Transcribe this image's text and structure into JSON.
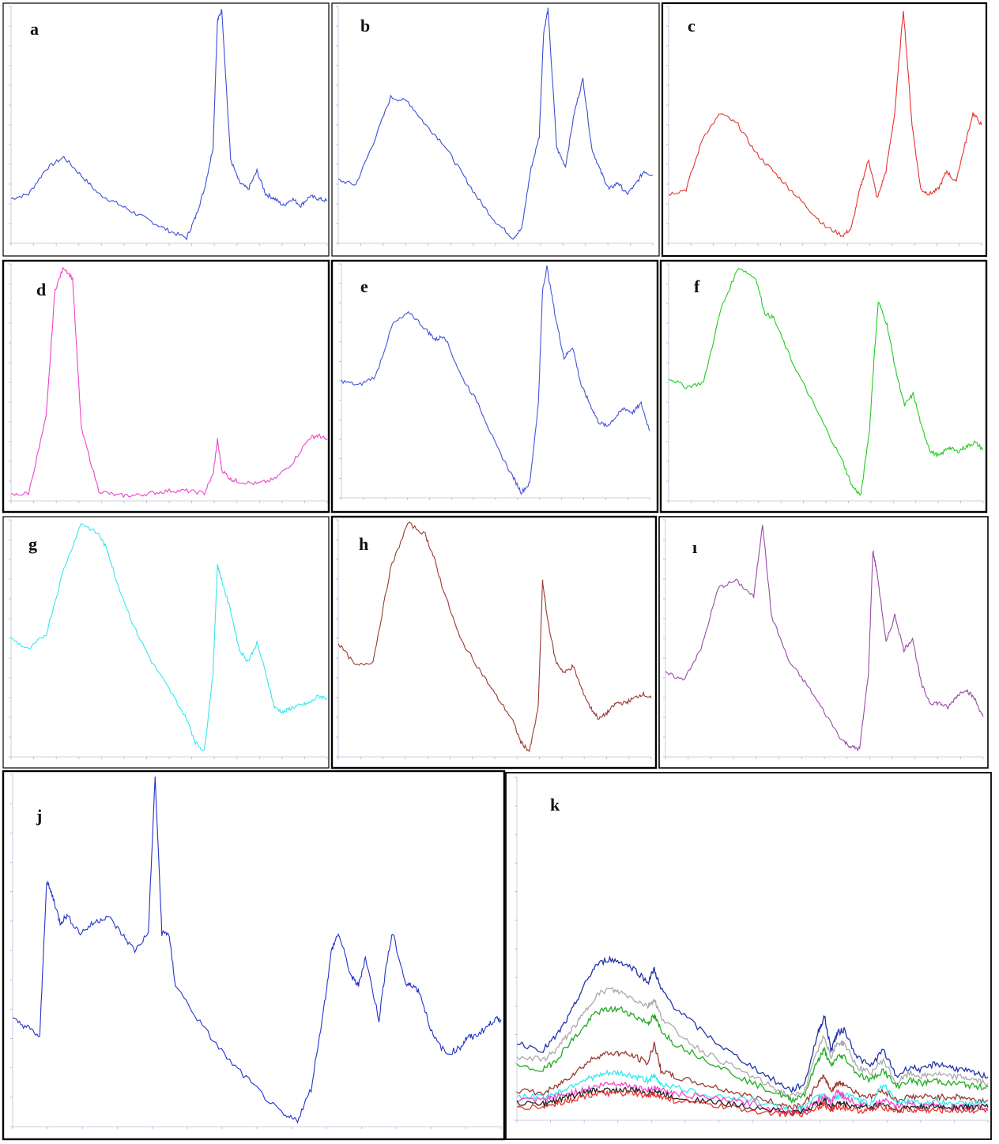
{
  "figure": {
    "panels": [
      {
        "id": "a",
        "label": "a",
        "color": "#3b4fd6"
      },
      {
        "id": "b",
        "label": "b",
        "color": "#3b4fd6"
      },
      {
        "id": "c",
        "label": "c",
        "color": "#e8322e"
      },
      {
        "id": "d",
        "label": "d",
        "color": "#ee44cc"
      },
      {
        "id": "e",
        "label": "e",
        "color": "#4455dd"
      },
      {
        "id": "f",
        "label": "f",
        "color": "#22cc22"
      },
      {
        "id": "g",
        "label": "g",
        "color": "#33e8f0"
      },
      {
        "id": "h",
        "label": "h",
        "color": "#9a3a30"
      },
      {
        "id": "i",
        "label": "ı",
        "color": "#9a4aa8"
      },
      {
        "id": "j",
        "label": "j",
        "color": "#2233cc"
      },
      {
        "id": "k",
        "label": "k",
        "color": "#2233aa"
      }
    ]
  },
  "chart_data": [
    {
      "panel": "a",
      "type": "line",
      "xlim": [
        4000,
        400
      ],
      "ylim": [
        0,
        1
      ],
      "x": [
        4000,
        3800,
        3600,
        3400,
        3200,
        3000,
        2800,
        2600,
        2400,
        2200,
        2000,
        1900,
        1800,
        1700,
        1650,
        1600,
        1500,
        1400,
        1300,
        1200,
        1100,
        1000,
        900,
        800,
        700,
        600,
        500,
        400
      ],
      "series": [
        {
          "values": [
            0.18,
            0.2,
            0.31,
            0.36,
            0.28,
            0.2,
            0.16,
            0.12,
            0.08,
            0.04,
            0.01,
            0.1,
            0.22,
            0.4,
            0.95,
            1.0,
            0.35,
            0.25,
            0.22,
            0.3,
            0.2,
            0.18,
            0.15,
            0.18,
            0.15,
            0.19,
            0.18,
            0.17
          ]
        }
      ]
    },
    {
      "panel": "b",
      "type": "line",
      "xlim": [
        4000,
        400
      ],
      "ylim": [
        0,
        1
      ],
      "x": [
        4000,
        3800,
        3600,
        3400,
        3200,
        3000,
        2800,
        2600,
        2400,
        2200,
        2000,
        1900,
        1800,
        1700,
        1650,
        1600,
        1500,
        1400,
        1300,
        1200,
        1100,
        1000,
        900,
        800,
        700,
        600,
        500,
        400
      ],
      "series": [
        {
          "values": [
            0.26,
            0.24,
            0.42,
            0.62,
            0.6,
            0.5,
            0.42,
            0.3,
            0.18,
            0.08,
            0.01,
            0.05,
            0.3,
            0.45,
            0.9,
            1.0,
            0.4,
            0.32,
            0.55,
            0.7,
            0.4,
            0.3,
            0.22,
            0.25,
            0.2,
            0.24,
            0.3,
            0.28
          ]
        }
      ]
    },
    {
      "panel": "c",
      "type": "line",
      "xlim": [
        4000,
        400
      ],
      "ylim": [
        0,
        1
      ],
      "x": [
        4000,
        3800,
        3600,
        3400,
        3200,
        3000,
        2800,
        2600,
        2400,
        2200,
        2000,
        1900,
        1800,
        1700,
        1600,
        1500,
        1400,
        1300,
        1200,
        1100,
        1000,
        900,
        800,
        700,
        600,
        500,
        400
      ],
      "series": [
        {
          "values": [
            0.2,
            0.22,
            0.45,
            0.55,
            0.5,
            0.38,
            0.3,
            0.22,
            0.14,
            0.06,
            0.02,
            0.05,
            0.22,
            0.35,
            0.18,
            0.3,
            0.55,
            1.0,
            0.5,
            0.22,
            0.2,
            0.22,
            0.3,
            0.25,
            0.4,
            0.55,
            0.5
          ]
        }
      ]
    },
    {
      "panel": "d",
      "type": "line",
      "xlim": [
        4000,
        400
      ],
      "ylim": [
        0,
        1
      ],
      "x": [
        4000,
        3800,
        3600,
        3500,
        3400,
        3300,
        3200,
        3000,
        2800,
        2600,
        2400,
        2200,
        2000,
        1800,
        1700,
        1650,
        1600,
        1500,
        1400,
        1200,
        1000,
        800,
        600,
        500,
        400
      ],
      "series": [
        {
          "values": [
            0.01,
            0.02,
            0.35,
            0.9,
            1.0,
            0.95,
            0.3,
            0.03,
            0.01,
            0.01,
            0.02,
            0.03,
            0.03,
            0.02,
            0.1,
            0.25,
            0.12,
            0.08,
            0.07,
            0.06,
            0.08,
            0.15,
            0.26,
            0.27,
            0.25
          ]
        }
      ]
    },
    {
      "panel": "e",
      "type": "line",
      "xlim": [
        4000,
        400
      ],
      "ylim": [
        0,
        1
      ],
      "x": [
        4000,
        3800,
        3600,
        3400,
        3200,
        3000,
        2900,
        2800,
        2600,
        2400,
        2200,
        2000,
        1900,
        1800,
        1700,
        1650,
        1600,
        1500,
        1400,
        1300,
        1200,
        1100,
        1000,
        900,
        800,
        700,
        600,
        500,
        400
      ],
      "series": [
        {
          "values": [
            0.5,
            0.48,
            0.52,
            0.75,
            0.8,
            0.72,
            0.68,
            0.7,
            0.52,
            0.4,
            0.22,
            0.08,
            0.01,
            0.05,
            0.4,
            0.9,
            1.0,
            0.78,
            0.6,
            0.65,
            0.48,
            0.4,
            0.32,
            0.3,
            0.34,
            0.38,
            0.36,
            0.4,
            0.28
          ]
        }
      ]
    },
    {
      "panel": "f",
      "type": "line",
      "xlim": [
        4000,
        400
      ],
      "ylim": [
        0,
        1
      ],
      "x": [
        4000,
        3800,
        3600,
        3400,
        3200,
        3000,
        2900,
        2800,
        2600,
        2400,
        2200,
        2000,
        1900,
        1800,
        1700,
        1650,
        1600,
        1500,
        1400,
        1300,
        1200,
        1100,
        1000,
        900,
        800,
        700,
        600,
        500,
        400
      ],
      "series": [
        {
          "values": [
            0.52,
            0.48,
            0.5,
            0.82,
            1.0,
            0.95,
            0.8,
            0.78,
            0.6,
            0.45,
            0.3,
            0.15,
            0.05,
            0.01,
            0.3,
            0.6,
            0.85,
            0.75,
            0.55,
            0.4,
            0.45,
            0.3,
            0.2,
            0.18,
            0.22,
            0.2,
            0.22,
            0.24,
            0.21
          ]
        }
      ]
    },
    {
      "panel": "g",
      "type": "line",
      "xlim": [
        4000,
        400
      ],
      "ylim": [
        0,
        1
      ],
      "x": [
        4000,
        3800,
        3600,
        3400,
        3200,
        3000,
        2900,
        2800,
        2600,
        2400,
        2200,
        2000,
        1900,
        1800,
        1700,
        1650,
        1600,
        1500,
        1400,
        1300,
        1200,
        1100,
        1000,
        900,
        800,
        700,
        600,
        500,
        400
      ],
      "series": [
        {
          "values": [
            0.5,
            0.45,
            0.52,
            0.8,
            1.0,
            0.95,
            0.88,
            0.75,
            0.55,
            0.4,
            0.28,
            0.15,
            0.05,
            0.01,
            0.35,
            0.82,
            0.75,
            0.62,
            0.45,
            0.4,
            0.48,
            0.35,
            0.2,
            0.18,
            0.2,
            0.21,
            0.22,
            0.25,
            0.24
          ]
        }
      ]
    },
    {
      "panel": "h",
      "type": "line",
      "xlim": [
        4000,
        400
      ],
      "ylim": [
        0,
        1
      ],
      "x": [
        4000,
        3800,
        3600,
        3400,
        3200,
        3000,
        2900,
        2800,
        2600,
        2400,
        2200,
        2000,
        1900,
        1800,
        1700,
        1650,
        1600,
        1500,
        1400,
        1300,
        1200,
        1100,
        1000,
        900,
        800,
        700,
        600,
        500,
        400
      ],
      "series": [
        {
          "values": [
            0.48,
            0.38,
            0.4,
            0.8,
            1.0,
            0.95,
            0.85,
            0.72,
            0.5,
            0.38,
            0.26,
            0.15,
            0.05,
            0.01,
            0.2,
            0.75,
            0.6,
            0.4,
            0.35,
            0.38,
            0.28,
            0.2,
            0.15,
            0.18,
            0.22,
            0.22,
            0.24,
            0.26,
            0.24
          ]
        }
      ]
    },
    {
      "panel": "i",
      "type": "line",
      "xlim": [
        4000,
        400
      ],
      "ylim": [
        0,
        1
      ],
      "x": [
        4000,
        3800,
        3600,
        3400,
        3200,
        3000,
        2900,
        2800,
        2600,
        2400,
        2200,
        2000,
        1900,
        1800,
        1700,
        1650,
        1600,
        1500,
        1400,
        1300,
        1200,
        1100,
        1000,
        900,
        800,
        700,
        600,
        500,
        400
      ],
      "series": [
        {
          "values": [
            0.35,
            0.32,
            0.45,
            0.72,
            0.75,
            0.68,
            1.0,
            0.6,
            0.4,
            0.3,
            0.18,
            0.06,
            0.03,
            0.02,
            0.35,
            0.88,
            0.78,
            0.48,
            0.6,
            0.45,
            0.5,
            0.3,
            0.22,
            0.22,
            0.2,
            0.25,
            0.28,
            0.24,
            0.16
          ]
        }
      ]
    },
    {
      "panel": "j",
      "type": "line",
      "xlim": [
        4000,
        400
      ],
      "ylim": [
        0,
        1
      ],
      "x": [
        4000,
        3900,
        3800,
        3750,
        3700,
        3650,
        3600,
        3500,
        3400,
        3300,
        3200,
        3100,
        3000,
        2950,
        2900,
        2850,
        2800,
        2600,
        2400,
        2200,
        2000,
        1900,
        1800,
        1700,
        1650,
        1600,
        1500,
        1450,
        1400,
        1300,
        1250,
        1200,
        1100,
        1050,
        1000,
        900,
        800,
        700,
        650,
        600,
        500,
        450,
        400
      ],
      "series": [
        {
          "values": [
            0.3,
            0.28,
            0.25,
            0.7,
            0.65,
            0.58,
            0.6,
            0.55,
            0.58,
            0.6,
            0.55,
            0.5,
            0.55,
            1.0,
            0.55,
            0.55,
            0.4,
            0.28,
            0.18,
            0.1,
            0.02,
            0.01,
            0.1,
            0.35,
            0.5,
            0.55,
            0.42,
            0.4,
            0.48,
            0.3,
            0.45,
            0.55,
            0.4,
            0.4,
            0.38,
            0.25,
            0.2,
            0.22,
            0.25,
            0.25,
            0.28,
            0.3,
            0.3
          ]
        }
      ]
    },
    {
      "panel": "k",
      "type": "line",
      "xlim": [
        4000,
        400
      ],
      "ylim": [
        0,
        1
      ],
      "x": [
        4000,
        3800,
        3700,
        3600,
        3500,
        3400,
        3300,
        3200,
        3100,
        3000,
        2950,
        2900,
        2800,
        2600,
        2400,
        2200,
        2000,
        1900,
        1800,
        1700,
        1650,
        1600,
        1550,
        1500,
        1400,
        1300,
        1200,
        1100,
        1000,
        900,
        800,
        700,
        600,
        500,
        400
      ],
      "series": [
        {
          "color": "#2233aa",
          "values": [
            0.22,
            0.2,
            0.24,
            0.3,
            0.38,
            0.45,
            0.47,
            0.46,
            0.44,
            0.4,
            0.44,
            0.38,
            0.33,
            0.26,
            0.2,
            0.15,
            0.1,
            0.08,
            0.1,
            0.25,
            0.3,
            0.2,
            0.25,
            0.26,
            0.18,
            0.15,
            0.2,
            0.12,
            0.15,
            0.14,
            0.16,
            0.15,
            0.14,
            0.13,
            0.12
          ]
        },
        {
          "color": "#aaaaaa",
          "values": [
            0.18,
            0.17,
            0.2,
            0.25,
            0.3,
            0.36,
            0.38,
            0.37,
            0.35,
            0.33,
            0.35,
            0.3,
            0.26,
            0.2,
            0.16,
            0.12,
            0.08,
            0.06,
            0.08,
            0.2,
            0.24,
            0.18,
            0.22,
            0.22,
            0.15,
            0.13,
            0.17,
            0.1,
            0.13,
            0.12,
            0.13,
            0.12,
            0.12,
            0.11,
            0.1
          ]
        },
        {
          "color": "#22aa22",
          "values": [
            0.15,
            0.14,
            0.17,
            0.22,
            0.26,
            0.31,
            0.32,
            0.32,
            0.3,
            0.28,
            0.3,
            0.26,
            0.22,
            0.18,
            0.14,
            0.1,
            0.07,
            0.05,
            0.07,
            0.17,
            0.2,
            0.15,
            0.18,
            0.18,
            0.13,
            0.11,
            0.14,
            0.09,
            0.11,
            0.1,
            0.11,
            0.1,
            0.1,
            0.09,
            0.09
          ]
        },
        {
          "color": "#9a3a30",
          "values": [
            0.08,
            0.07,
            0.09,
            0.12,
            0.15,
            0.18,
            0.19,
            0.19,
            0.18,
            0.16,
            0.22,
            0.14,
            0.12,
            0.1,
            0.08,
            0.06,
            0.04,
            0.03,
            0.04,
            0.1,
            0.12,
            0.08,
            0.1,
            0.1,
            0.07,
            0.06,
            0.08,
            0.05,
            0.06,
            0.06,
            0.06,
            0.06,
            0.06,
            0.05,
            0.05
          ]
        },
        {
          "color": "#33e8f0",
          "values": [
            0.06,
            0.06,
            0.07,
            0.09,
            0.11,
            0.12,
            0.13,
            0.13,
            0.12,
            0.11,
            0.12,
            0.1,
            0.09,
            0.07,
            0.06,
            0.05,
            0.03,
            0.02,
            0.03,
            0.06,
            0.07,
            0.05,
            0.06,
            0.07,
            0.05,
            0.04,
            0.1,
            0.04,
            0.05,
            0.04,
            0.05,
            0.04,
            0.04,
            0.04,
            0.04
          ]
        },
        {
          "color": "#ee44cc",
          "values": [
            0.05,
            0.05,
            0.06,
            0.07,
            0.08,
            0.09,
            0.1,
            0.1,
            0.09,
            0.08,
            0.09,
            0.08,
            0.07,
            0.06,
            0.05,
            0.04,
            0.02,
            0.02,
            0.02,
            0.05,
            0.06,
            0.04,
            0.08,
            0.06,
            0.04,
            0.03,
            0.05,
            0.03,
            0.04,
            0.03,
            0.04,
            0.03,
            0.03,
            0.03,
            0.03
          ]
        },
        {
          "color": "#222222",
          "values": [
            0.04,
            0.04,
            0.05,
            0.06,
            0.07,
            0.08,
            0.08,
            0.08,
            0.08,
            0.07,
            0.08,
            0.07,
            0.06,
            0.05,
            0.04,
            0.03,
            0.02,
            0.01,
            0.02,
            0.04,
            0.05,
            0.03,
            0.04,
            0.04,
            0.03,
            0.03,
            0.04,
            0.02,
            0.03,
            0.03,
            0.03,
            0.03,
            0.03,
            0.03,
            0.03
          ]
        },
        {
          "color": "#e8322e",
          "values": [
            0.03,
            0.03,
            0.04,
            0.05,
            0.06,
            0.07,
            0.07,
            0.07,
            0.07,
            0.06,
            0.07,
            0.06,
            0.05,
            0.04,
            0.03,
            0.02,
            0.01,
            0.01,
            0.01,
            0.03,
            0.04,
            0.02,
            0.03,
            0.03,
            0.02,
            0.02,
            0.03,
            0.02,
            0.02,
            0.02,
            0.02,
            0.02,
            0.02,
            0.02,
            0.02
          ]
        }
      ]
    }
  ]
}
